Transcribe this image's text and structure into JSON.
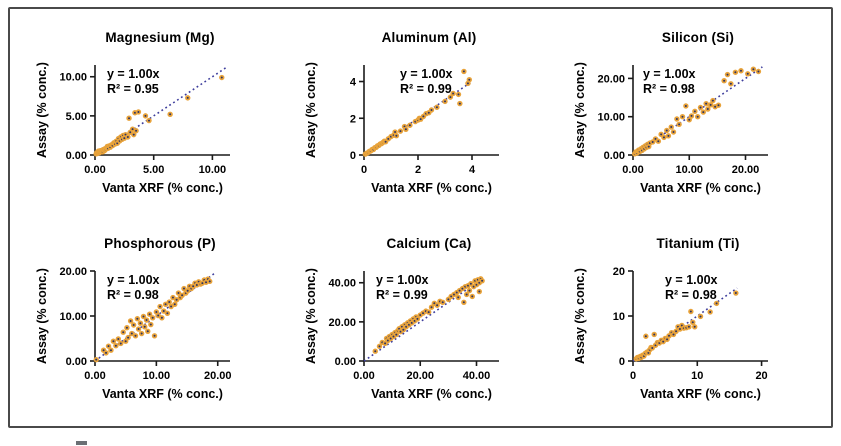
{
  "colors": {
    "marker": "#E8A33B",
    "marker_center": "#2F3460",
    "trend": "#3D3D9C",
    "axis": "#1A1A1A",
    "border": "#4A4A4A"
  },
  "chart_data": [
    {
      "type": "scatter",
      "title": "Magnesium (Mg)",
      "xlabel": "Vanta XRF (% conc.)",
      "ylabel": "Assay (% conc.)",
      "equation": "y = 1.00x",
      "r2_label": "R² = 0.95",
      "xlim": [
        0,
        11.5
      ],
      "ylim": [
        0,
        11.5
      ],
      "xtick_values": [
        0,
        5,
        10
      ],
      "xtick_labels": [
        "0.00",
        "5.00",
        "10.00"
      ],
      "ytick_values": [
        0,
        5,
        10
      ],
      "ytick_labels": [
        "0.00",
        "5.00",
        "10.00"
      ],
      "trend": [
        0,
        0,
        11.2,
        11.2
      ],
      "ann_dx": 12,
      "points": [
        [
          0.1,
          0.15
        ],
        [
          0.15,
          0.3
        ],
        [
          0.2,
          0.2
        ],
        [
          0.3,
          0.35
        ],
        [
          0.3,
          0.5
        ],
        [
          0.4,
          0.3
        ],
        [
          0.45,
          0.55
        ],
        [
          0.5,
          0.45
        ],
        [
          0.6,
          0.6
        ],
        [
          0.65,
          0.4
        ],
        [
          0.7,
          0.7
        ],
        [
          0.8,
          0.55
        ],
        [
          0.85,
          0.8
        ],
        [
          0.9,
          0.7
        ],
        [
          1.0,
          0.9
        ],
        [
          1.05,
          1.1
        ],
        [
          1.1,
          0.85
        ],
        [
          1.2,
          1.15
        ],
        [
          1.3,
          1.0
        ],
        [
          1.4,
          1.3
        ],
        [
          1.5,
          1.2
        ],
        [
          1.6,
          1.55
        ],
        [
          1.7,
          1.4
        ],
        [
          1.8,
          1.75
        ],
        [
          1.9,
          1.5
        ],
        [
          2.0,
          2.1
        ],
        [
          2.1,
          1.8
        ],
        [
          2.2,
          2.3
        ],
        [
          2.3,
          2.0
        ],
        [
          2.4,
          2.5
        ],
        [
          2.5,
          2.15
        ],
        [
          2.6,
          2.6
        ],
        [
          2.8,
          2.3
        ],
        [
          2.9,
          4.7
        ],
        [
          3.0,
          2.9
        ],
        [
          3.2,
          3.3
        ],
        [
          3.3,
          2.6
        ],
        [
          3.4,
          5.4
        ],
        [
          3.5,
          3.1
        ],
        [
          3.7,
          5.5
        ],
        [
          4.3,
          5.0
        ],
        [
          4.6,
          4.4
        ],
        [
          6.4,
          5.2
        ],
        [
          7.9,
          7.3
        ],
        [
          10.8,
          9.9
        ]
      ]
    },
    {
      "type": "scatter",
      "title": "Aluminum (Al)",
      "xlabel": "Vanta XRF (% conc.)",
      "ylabel": "Assay (% conc.)",
      "equation": "y = 1.00x",
      "r2_label": "R² = 0.99",
      "xlim": [
        0,
        5
      ],
      "ylim": [
        0,
        4.9
      ],
      "xtick_values": [
        0,
        2,
        4
      ],
      "xtick_labels": [
        "0",
        "2",
        "4"
      ],
      "ytick_values": [
        0,
        2,
        4
      ],
      "ytick_labels": [
        "0",
        "2",
        "4"
      ],
      "trend": [
        0,
        0,
        4.0,
        4.0
      ],
      "ann_dx": 36,
      "points": [
        [
          0.05,
          0.05
        ],
        [
          0.1,
          0.1
        ],
        [
          0.15,
          0.13
        ],
        [
          0.2,
          0.2
        ],
        [
          0.25,
          0.22
        ],
        [
          0.3,
          0.3
        ],
        [
          0.35,
          0.3
        ],
        [
          0.4,
          0.4
        ],
        [
          0.45,
          0.42
        ],
        [
          0.5,
          0.5
        ],
        [
          0.55,
          0.52
        ],
        [
          0.6,
          0.6
        ],
        [
          0.65,
          0.62
        ],
        [
          0.7,
          0.68
        ],
        [
          0.75,
          0.75
        ],
        [
          0.8,
          0.72
        ],
        [
          0.9,
          0.88
        ],
        [
          1.0,
          1.0
        ],
        [
          1.1,
          1.08
        ],
        [
          1.15,
          1.25
        ],
        [
          1.2,
          1.05
        ],
        [
          1.35,
          1.3
        ],
        [
          1.5,
          1.55
        ],
        [
          1.55,
          1.4
        ],
        [
          1.7,
          1.62
        ],
        [
          1.9,
          1.82
        ],
        [
          2.0,
          1.9
        ],
        [
          2.05,
          2.0
        ],
        [
          2.1,
          1.95
        ],
        [
          2.2,
          2.1
        ],
        [
          2.3,
          2.25
        ],
        [
          2.4,
          2.3
        ],
        [
          2.5,
          2.45
        ],
        [
          2.7,
          2.6
        ],
        [
          3.0,
          2.92
        ],
        [
          3.2,
          3.15
        ],
        [
          3.3,
          3.35
        ],
        [
          3.5,
          3.3
        ],
        [
          3.55,
          2.8
        ],
        [
          3.7,
          4.55
        ],
        [
          3.85,
          3.9
        ],
        [
          3.9,
          4.1
        ]
      ]
    },
    {
      "type": "scatter",
      "title": "Silicon (Si)",
      "xlabel": "Vanta XRF (% conc.)",
      "ylabel": "Assay (% conc.)",
      "equation": "y = 1.00x",
      "r2_label": "R² = 0.98",
      "xlim": [
        0,
        24
      ],
      "ylim": [
        0,
        23.5
      ],
      "xtick_values": [
        0,
        10,
        20
      ],
      "xtick_labels": [
        "0.00",
        "10.00",
        "20.00"
      ],
      "ytick_values": [
        0,
        10,
        20
      ],
      "ytick_labels": [
        "0.00",
        "10.00",
        "20.00"
      ],
      "trend": [
        0,
        0,
        23,
        23
      ],
      "ann_dx": 10,
      "points": [
        [
          0.3,
          0.3
        ],
        [
          0.5,
          0.8
        ],
        [
          0.7,
          0.5
        ],
        [
          0.9,
          1.0
        ],
        [
          1.0,
          1.3
        ],
        [
          1.2,
          0.9
        ],
        [
          1.4,
          1.6
        ],
        [
          1.6,
          1.2
        ],
        [
          1.8,
          2.0
        ],
        [
          2.0,
          1.6
        ],
        [
          2.2,
          2.4
        ],
        [
          2.4,
          2.0
        ],
        [
          2.6,
          2.8
        ],
        [
          2.8,
          2.2
        ],
        [
          3.0,
          3.1
        ],
        [
          3.5,
          3.4
        ],
        [
          4.0,
          4.2
        ],
        [
          4.5,
          3.6
        ],
        [
          5.0,
          5.4
        ],
        [
          5.5,
          4.6
        ],
        [
          6.0,
          6.4
        ],
        [
          6.3,
          5.0
        ],
        [
          6.8,
          7.3
        ],
        [
          7.2,
          6.0
        ],
        [
          7.8,
          9.4
        ],
        [
          8.2,
          8.0
        ],
        [
          8.8,
          10.0
        ],
        [
          9.4,
          12.8
        ],
        [
          10.0,
          9.2
        ],
        [
          10.4,
          10.2
        ],
        [
          11.0,
          11.4
        ],
        [
          11.5,
          10.0
        ],
        [
          12.0,
          12.4
        ],
        [
          12.5,
          11.2
        ],
        [
          13.0,
          13.4
        ],
        [
          13.3,
          12.0
        ],
        [
          13.8,
          13.1
        ],
        [
          14.2,
          14.2
        ],
        [
          14.6,
          12.6
        ],
        [
          15.2,
          13.0
        ],
        [
          16.2,
          19.4
        ],
        [
          16.8,
          21.0
        ],
        [
          17.4,
          18.6
        ],
        [
          18.2,
          21.6
        ],
        [
          19.2,
          22.0
        ],
        [
          20.4,
          21.2
        ],
        [
          21.4,
          22.4
        ],
        [
          22.3,
          21.8
        ]
      ]
    },
    {
      "type": "scatter",
      "title": "Phosphorous (P)",
      "xlabel": "Vanta XRF (% conc.)",
      "ylabel": "Assay (% conc.)",
      "equation": "y = 1.00x",
      "r2_label": "R² = 0.98",
      "xlim": [
        0,
        22
      ],
      "ylim": [
        0,
        20
      ],
      "xtick_values": [
        0,
        10,
        20
      ],
      "xtick_labels": [
        "0.00",
        "10.00",
        "20.00"
      ],
      "ytick_values": [
        0,
        10,
        20
      ],
      "ytick_labels": [
        "0.00",
        "10.00",
        "20.00"
      ],
      "trend": [
        0,
        0,
        19.5,
        19.5
      ],
      "ann_dx": 12,
      "points": [
        [
          0.2,
          0.3
        ],
        [
          1.4,
          2.4
        ],
        [
          1.8,
          1.8
        ],
        [
          2.2,
          3.3
        ],
        [
          2.6,
          2.4
        ],
        [
          3.0,
          4.4
        ],
        [
          3.4,
          3.4
        ],
        [
          3.8,
          4.9
        ],
        [
          4.2,
          3.9
        ],
        [
          4.6,
          6.4
        ],
        [
          5.0,
          4.4
        ],
        [
          5.2,
          7.4
        ],
        [
          5.4,
          5.2
        ],
        [
          5.8,
          8.9
        ],
        [
          6.0,
          6.1
        ],
        [
          6.3,
          8.0
        ],
        [
          6.6,
          5.6
        ],
        [
          6.9,
          9.4
        ],
        [
          7.1,
          7.1
        ],
        [
          7.4,
          8.4
        ],
        [
          7.6,
          6.1
        ],
        [
          7.9,
          9.9
        ],
        [
          8.1,
          7.6
        ],
        [
          8.4,
          9.1
        ],
        [
          8.6,
          6.6
        ],
        [
          8.9,
          10.4
        ],
        [
          9.1,
          8.1
        ],
        [
          9.4,
          9.6
        ],
        [
          9.7,
          5.6
        ],
        [
          10.0,
          10.9
        ],
        [
          10.3,
          10.1
        ],
        [
          10.6,
          12.1
        ],
        [
          10.9,
          9.6
        ],
        [
          11.2,
          11.1
        ],
        [
          11.5,
          12.6
        ],
        [
          11.8,
          10.6
        ],
        [
          12.1,
          13.1
        ],
        [
          12.4,
          12.1
        ],
        [
          12.7,
          14.1
        ],
        [
          13.0,
          12.6
        ],
        [
          13.3,
          13.6
        ],
        [
          13.6,
          15.1
        ],
        [
          13.9,
          14.1
        ],
        [
          14.2,
          14.6
        ],
        [
          14.5,
          16.1
        ],
        [
          14.8,
          15.1
        ],
        [
          15.1,
          15.6
        ],
        [
          15.4,
          16.6
        ],
        [
          15.7,
          16.1
        ],
        [
          16.0,
          16.6
        ],
        [
          16.3,
          17.3
        ],
        [
          16.6,
          16.9
        ],
        [
          16.9,
          17.6
        ],
        [
          17.2,
          17.1
        ],
        [
          17.5,
          17.3
        ],
        [
          17.8,
          18.0
        ],
        [
          18.1,
          17.5
        ],
        [
          18.4,
          18.2
        ],
        [
          18.7,
          17.7
        ]
      ]
    },
    {
      "type": "scatter",
      "title": "Calcium (Ca)",
      "xlabel": "Vanta XRF (% conc.)",
      "ylabel": "Assay (% conc.)",
      "equation": "y = 1.00x",
      "r2_label": "R² = 0.99",
      "xlim": [
        0,
        48
      ],
      "ylim": [
        0,
        46
      ],
      "xtick_values": [
        0,
        20,
        40
      ],
      "xtick_labels": [
        "0.00",
        "20.00",
        "40.00"
      ],
      "ytick_values": [
        0,
        20,
        40
      ],
      "ytick_labels": [
        "0.00",
        "20.00",
        "40.00"
      ],
      "trend": [
        0,
        0,
        42.5,
        42.5
      ],
      "ann_dx": 12,
      "points": [
        [
          4,
          5
        ],
        [
          5.5,
          7.5
        ],
        [
          6.5,
          9.5
        ],
        [
          7.5,
          9
        ],
        [
          8,
          11.5
        ],
        [
          8.5,
          10.5
        ],
        [
          9,
          12.5
        ],
        [
          9.5,
          11.5
        ],
        [
          10,
          13.5
        ],
        [
          10.5,
          12.5
        ],
        [
          11,
          14.5
        ],
        [
          11.5,
          13.5
        ],
        [
          12,
          15.5
        ],
        [
          12.5,
          16.5
        ],
        [
          13,
          15
        ],
        [
          13.5,
          17.5
        ],
        [
          14,
          16
        ],
        [
          14.5,
          18.5
        ],
        [
          15,
          17.5
        ],
        [
          15.5,
          19.5
        ],
        [
          16,
          18.5
        ],
        [
          16.5,
          20.5
        ],
        [
          17,
          19.5
        ],
        [
          17.5,
          21.5
        ],
        [
          18,
          20.5
        ],
        [
          18.5,
          22.5
        ],
        [
          19,
          21.5
        ],
        [
          20,
          23.5
        ],
        [
          21,
          24.5
        ],
        [
          22,
          25.5
        ],
        [
          23,
          25
        ],
        [
          24,
          27.5
        ],
        [
          25,
          29.5
        ],
        [
          26,
          28.5
        ],
        [
          27,
          30.5
        ],
        [
          28,
          30
        ],
        [
          30,
          31.5
        ],
        [
          31,
          33
        ],
        [
          32,
          34
        ],
        [
          33,
          35
        ],
        [
          33.5,
          32.5
        ],
        [
          34,
          36
        ],
        [
          35,
          37
        ],
        [
          35.5,
          30
        ],
        [
          36,
          38
        ],
        [
          36.5,
          34
        ],
        [
          37,
          38.5
        ],
        [
          37.5,
          36
        ],
        [
          38,
          39.5
        ],
        [
          38.5,
          33
        ],
        [
          39,
          38
        ],
        [
          39.5,
          41
        ],
        [
          40,
          39
        ],
        [
          40.5,
          41.5
        ],
        [
          41,
          35.5
        ],
        [
          41,
          40
        ],
        [
          41.5,
          42
        ],
        [
          42,
          41
        ]
      ]
    },
    {
      "type": "scatter",
      "title": "Titanium (Ti)",
      "xlabel": "Vanta XRF (% conc.)",
      "ylabel": "Assay (% conc.)",
      "equation": "y = 1.00x",
      "r2_label": "R² = 0.98",
      "xlim": [
        0,
        21
      ],
      "ylim": [
        0,
        20
      ],
      "xtick_values": [
        0,
        10,
        20
      ],
      "xtick_labels": [
        "0",
        "10",
        "20"
      ],
      "ytick_values": [
        0,
        10,
        20
      ],
      "ytick_labels": [
        "0",
        "10",
        "20"
      ],
      "trend": [
        0,
        0,
        16.2,
        16.2
      ],
      "ann_dx": 32,
      "points": [
        [
          0.5,
          0.5
        ],
        [
          0.7,
          0.8
        ],
        [
          0.9,
          0.6
        ],
        [
          1.1,
          1.0
        ],
        [
          1.3,
          0.8
        ],
        [
          1.5,
          1.3
        ],
        [
          1.7,
          1.1
        ],
        [
          1.9,
          1.7
        ],
        [
          2.0,
          5.5
        ],
        [
          2.2,
          2.0
        ],
        [
          2.4,
          1.8
        ],
        [
          2.6,
          2.5
        ],
        [
          2.8,
          3.0
        ],
        [
          3.0,
          2.9
        ],
        [
          3.3,
          5.9
        ],
        [
          3.5,
          3.5
        ],
        [
          3.8,
          4.1
        ],
        [
          4.1,
          4.0
        ],
        [
          4.4,
          4.6
        ],
        [
          4.7,
          4.3
        ],
        [
          5.0,
          5.0
        ],
        [
          5.3,
          4.8
        ],
        [
          5.6,
          5.6
        ],
        [
          6.0,
          6.3
        ],
        [
          6.3,
          5.9
        ],
        [
          6.7,
          6.6
        ],
        [
          7.0,
          7.6
        ],
        [
          7.3,
          7.1
        ],
        [
          7.6,
          7.9
        ],
        [
          7.9,
          7.3
        ],
        [
          8.3,
          7.4
        ],
        [
          8.7,
          7.6
        ],
        [
          9.0,
          11.0
        ],
        [
          9.3,
          8.6
        ],
        [
          9.6,
          7.6
        ],
        [
          10.5,
          9.9
        ],
        [
          12.0,
          10.9
        ],
        [
          13.0,
          12.8
        ],
        [
          16.0,
          15.1
        ]
      ]
    }
  ]
}
